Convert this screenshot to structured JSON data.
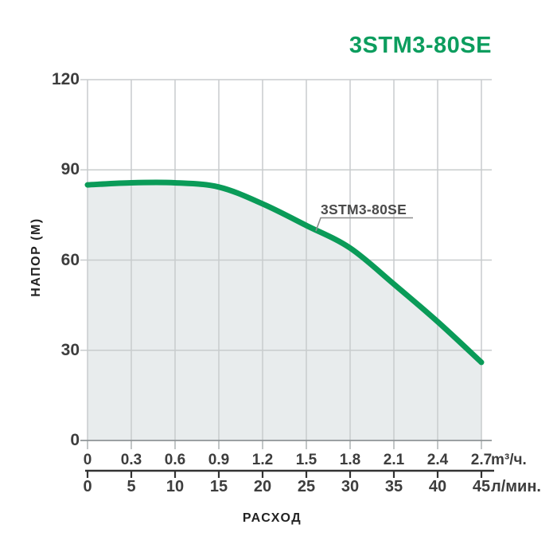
{
  "title": "3STM3-80SE",
  "colors": {
    "title_green": "#0c9d5e",
    "curve_green": "#0a9b58",
    "area_fill": "#e8eced",
    "grid": "#c8cccd",
    "zero_line": "#8f9497",
    "small_tick": "#aeb2b4",
    "flow_axis_dark": "#333333",
    "leader_gray": "#8c8c8c",
    "tick_text": "#3d3d3d"
  },
  "chart_data": {
    "type": "area",
    "title": "3STM3-80SE",
    "curve_label": "3STM3-80SE",
    "ylabel": "НАПОР (М)",
    "xlabel": "РАСХОД",
    "x_unit_primary": "m³/ч.",
    "x_unit_secondary": "л/мин.",
    "x_m3h": [
      0,
      0.3,
      0.6,
      0.9,
      1.2,
      1.5,
      1.8,
      2.1,
      2.4,
      2.7
    ],
    "x_lmin": [
      0,
      5,
      10,
      15,
      20,
      25,
      30,
      35,
      40,
      45
    ],
    "head_m": [
      85,
      85.7,
      85.7,
      84.3,
      78.7,
      71.5,
      64,
      52,
      39.5,
      26
    ],
    "y_ticks": [
      120,
      90,
      60,
      30,
      0
    ],
    "ylim": [
      0,
      120
    ],
    "xlim": [
      0,
      2.7
    ],
    "grid": true,
    "legend_position": "none",
    "series_color": "#0a9b58",
    "area_color": "#e8eced"
  }
}
